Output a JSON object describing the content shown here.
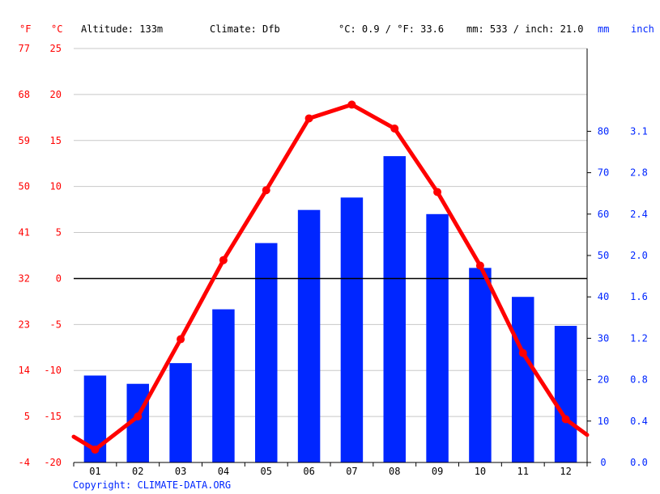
{
  "header": {
    "unit_f": "°F",
    "unit_c": "°C",
    "altitude": "Altitude: 133m",
    "climate": "Climate: Dfb",
    "avg_temp": "°C: 0.9 / °F: 33.6",
    "precip_total": "mm: 533 / inch: 21.0",
    "unit_mm": "mm",
    "unit_inch": "inch"
  },
  "footer": {
    "copyright": "Copyright: CLIMATE-DATA.ORG"
  },
  "colors": {
    "temp": "#ff0000",
    "precip": "#0026ff",
    "grid": "#c8c8c8",
    "zero": "#000000"
  },
  "chart_data": {
    "type": "bar",
    "categories": [
      "01",
      "02",
      "03",
      "04",
      "05",
      "06",
      "07",
      "08",
      "09",
      "10",
      "11",
      "12"
    ],
    "series": [
      {
        "kind": "bar",
        "axis": "precip_mm",
        "values": [
          21,
          19,
          24,
          37,
          53,
          61,
          64,
          74,
          60,
          47,
          40,
          33
        ]
      },
      {
        "kind": "line",
        "axis": "temp_c",
        "values": [
          -18.6,
          -15.0,
          -6.6,
          2.0,
          9.6,
          17.4,
          18.9,
          16.3,
          9.4,
          1.4,
          -8.1,
          -15.3
        ],
        "edge_left": -17.2,
        "edge_right": -17.0
      }
    ],
    "axes": {
      "temp_c": {
        "ylim": [
          -20,
          25
        ],
        "ticks": [
          "25",
          "20",
          "15",
          "10",
          "5",
          "0",
          "-5",
          "-10",
          "-15",
          "-20"
        ]
      },
      "temp_f": {
        "ticks": [
          "77",
          "68",
          "59",
          "50",
          "41",
          "32",
          "23",
          "14",
          "5",
          "-4"
        ]
      },
      "precip_mm": {
        "ylim": [
          0,
          100
        ],
        "ticks": [
          "80",
          "70",
          "60",
          "50",
          "40",
          "30",
          "20",
          "10",
          "0"
        ]
      },
      "precip_in": {
        "ticks": [
          "3.1",
          "2.8",
          "2.4",
          "2.0",
          "1.6",
          "1.2",
          "0.8",
          "0.4",
          "0.0"
        ]
      }
    },
    "grid": true
  }
}
